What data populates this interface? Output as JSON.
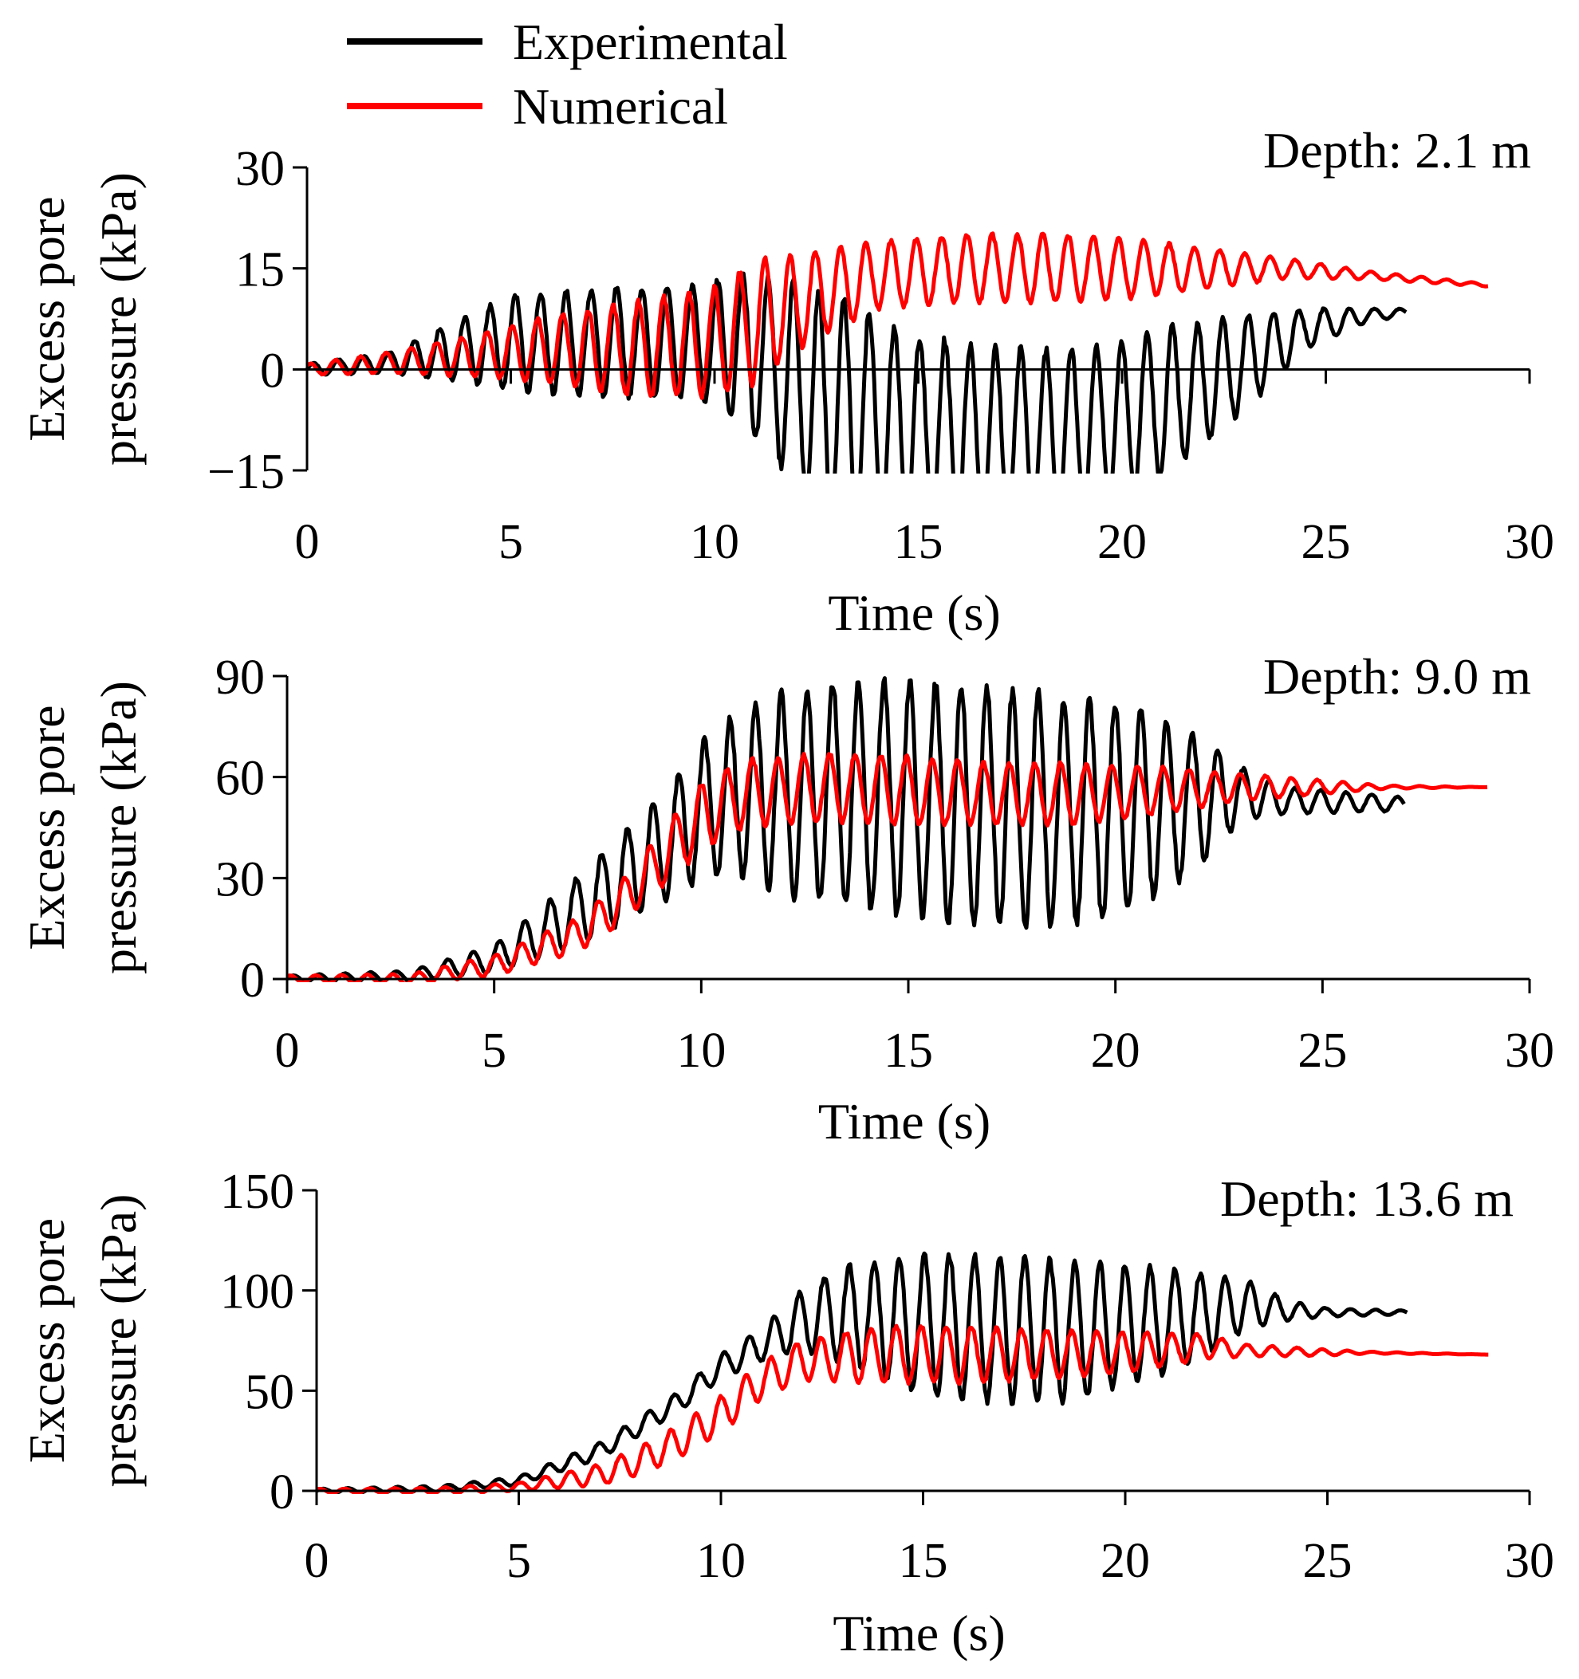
{
  "legend": {
    "entries": [
      {
        "name": "Experimental",
        "color": "#000000"
      },
      {
        "name": "Numerical",
        "color": "#ff0000"
      }
    ]
  },
  "chart_data": [
    {
      "type": "line",
      "title": "Depth: 2.1 m",
      "xlabel": "Time (s)",
      "ylabel_lines": [
        "Excess pore",
        "pressure (kPa)"
      ],
      "xlim": [
        0,
        30
      ],
      "ylim": [
        -15,
        30
      ],
      "xticks": [
        0,
        5,
        10,
        15,
        20,
        25,
        30
      ],
      "yticks": [
        -15,
        0,
        15,
        30
      ],
      "ytick_labels": [
        "−15",
        "0",
        "15",
        "30"
      ],
      "series": [
        {
          "name": "Experimental",
          "color": "#000000",
          "t_end": 27,
          "envelope": [
            [
              0,
              0,
              0.8
            ],
            [
              2,
              1,
              1.5
            ],
            [
              4,
              3,
              5
            ],
            [
              5,
              4,
              7
            ],
            [
              7,
              4,
              8
            ],
            [
              9,
              4,
              8
            ],
            [
              10,
              4,
              9
            ],
            [
              11,
              2,
              12
            ],
            [
              12,
              -2,
              15
            ],
            [
              13,
              -6,
              17
            ],
            [
              15,
              -9,
              14
            ],
            [
              17,
              -10,
              13
            ],
            [
              19,
              -9,
              12
            ],
            [
              21,
              -5,
              11
            ],
            [
              23,
              1,
              7
            ],
            [
              24.5,
              6,
              3
            ],
            [
              26,
              8,
              1
            ],
            [
              27,
              8.5,
              0.5
            ]
          ]
        },
        {
          "name": "Numerical",
          "color": "#ff0000",
          "t_end": 29,
          "envelope": [
            [
              0,
              0,
              0.8
            ],
            [
              2,
              1,
              1.5
            ],
            [
              4,
              2,
              3
            ],
            [
              6,
              3,
              5
            ],
            [
              8,
              3,
              7
            ],
            [
              10,
              4,
              8
            ],
            [
              11,
              7,
              9
            ],
            [
              12,
              10,
              7
            ],
            [
              14,
              14,
              5
            ],
            [
              16,
              15,
              5
            ],
            [
              18,
              15,
              5
            ],
            [
              20,
              15,
              4.5
            ],
            [
              22,
              15,
              3
            ],
            [
              24,
              15,
              1.5
            ],
            [
              26,
              14,
              0.6
            ],
            [
              29,
              12.5,
              0.2
            ]
          ]
        }
      ]
    },
    {
      "type": "line",
      "title": "Depth: 9.0 m",
      "xlabel": "Time (s)",
      "ylabel_lines": [
        "Excess pore",
        "pressure (kPa)"
      ],
      "xlim": [
        0,
        30
      ],
      "ylim": [
        0,
        90
      ],
      "xticks": [
        0,
        5,
        10,
        15,
        20,
        25,
        30
      ],
      "yticks": [
        0,
        30,
        60,
        90
      ],
      "ytick_labels": [
        "0",
        "30",
        "60",
        "90"
      ],
      "series": [
        {
          "name": "Experimental",
          "color": "#000000",
          "t_end": 27,
          "envelope": [
            [
              0,
              0,
              1
            ],
            [
              3,
              1,
              1.5
            ],
            [
              5,
              6,
              4
            ],
            [
              7,
              20,
              10
            ],
            [
              9,
              38,
              16
            ],
            [
              10,
              50,
              20
            ],
            [
              11,
              55,
              25
            ],
            [
              12,
              55,
              30
            ],
            [
              14,
              55,
              34
            ],
            [
              16,
              52,
              35
            ],
            [
              18,
              50,
              35
            ],
            [
              20,
              50,
              32
            ],
            [
              22,
              53,
              20
            ],
            [
              23,
              55,
              8
            ],
            [
              24,
              53,
              4
            ],
            [
              27,
              52,
              2
            ]
          ]
        },
        {
          "name": "Numerical",
          "color": "#ff0000",
          "t_end": 29,
          "envelope": [
            [
              0,
              0,
              1
            ],
            [
              3,
              0,
              1.5
            ],
            [
              5,
              4,
              3
            ],
            [
              7,
              13,
              5
            ],
            [
              8,
              22,
              6
            ],
            [
              9,
              35,
              8
            ],
            [
              10,
              48,
              10
            ],
            [
              11,
              55,
              10
            ],
            [
              13,
              57,
              10
            ],
            [
              15,
              56,
              10
            ],
            [
              17,
              55,
              9
            ],
            [
              19,
              55,
              9
            ],
            [
              21,
              56,
              7
            ],
            [
              23,
              57,
              4
            ],
            [
              25,
              57,
              2
            ],
            [
              26.5,
              57,
              0.5
            ],
            [
              29,
              57,
              0
            ]
          ]
        }
      ]
    },
    {
      "type": "line",
      "title": "Depth: 13.6 m",
      "xlabel": "Time (s)",
      "ylabel_lines": [
        "Excess pore",
        "pressure (kPa)"
      ],
      "xlim": [
        0,
        30
      ],
      "ylim": [
        0,
        150
      ],
      "xticks": [
        0,
        5,
        10,
        15,
        20,
        25,
        30
      ],
      "yticks": [
        0,
        50,
        100,
        150
      ],
      "ytick_labels": [
        "0",
        "50",
        "100",
        "150"
      ],
      "series": [
        {
          "name": "Experimental",
          "color": "#000000",
          "t_end": 27,
          "envelope": [
            [
              0,
              0,
              1
            ],
            [
              3,
              1,
              1.5
            ],
            [
              5,
              5,
              2
            ],
            [
              7,
              20,
              4
            ],
            [
              9,
              45,
              5
            ],
            [
              10,
              62,
              6
            ],
            [
              11,
              73,
              8
            ],
            [
              12,
              85,
              15
            ],
            [
              13,
              88,
              24
            ],
            [
              15,
              83,
              35
            ],
            [
              17,
              80,
              36
            ],
            [
              19,
              80,
              34
            ],
            [
              21,
              85,
              26
            ],
            [
              22,
              88,
              20
            ],
            [
              23,
              93,
              12
            ],
            [
              24,
              90,
              5
            ],
            [
              25,
              89,
              2
            ],
            [
              27,
              89,
              1
            ]
          ]
        },
        {
          "name": "Numerical",
          "color": "#ff0000",
          "t_end": 29,
          "envelope": [
            [
              0,
              0,
              1
            ],
            [
              3,
              0,
              1.5
            ],
            [
              5,
              2,
              2
            ],
            [
              7,
              8,
              5
            ],
            [
              8,
              15,
              7
            ],
            [
              9,
              25,
              8
            ],
            [
              10,
              38,
              9
            ],
            [
              11,
              55,
              9
            ],
            [
              12,
              65,
              10
            ],
            [
              14,
              68,
              14
            ],
            [
              16,
              68,
              14
            ],
            [
              18,
              68,
              12
            ],
            [
              20,
              69,
              10
            ],
            [
              22,
              72,
              6
            ],
            [
              23,
              70,
              3
            ],
            [
              25,
              69,
              1.5
            ],
            [
              26,
              69,
              0.5
            ],
            [
              29,
              68,
              0
            ]
          ]
        }
      ]
    }
  ]
}
